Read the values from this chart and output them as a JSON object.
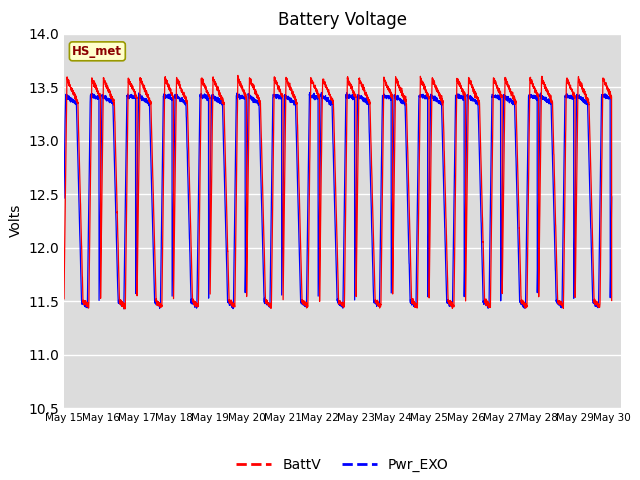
{
  "title": "Battery Voltage",
  "ylabel": "Volts",
  "xlabel": "",
  "annotation": "HS_met",
  "ylim": [
    10.5,
    14.0
  ],
  "yticks": [
    10.5,
    11.0,
    11.5,
    12.0,
    12.5,
    13.0,
    13.5,
    14.0
  ],
  "legend": [
    "BattV",
    "Pwr_EXO"
  ],
  "line_colors": [
    "red",
    "blue"
  ],
  "plot_bg_color": "#dcdcdc",
  "tick_days": [
    15,
    16,
    17,
    18,
    19,
    20,
    21,
    22,
    23,
    24,
    25,
    26,
    27,
    28,
    29,
    30
  ]
}
